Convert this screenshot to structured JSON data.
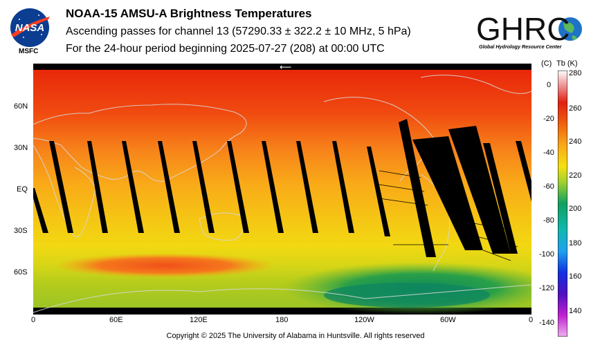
{
  "header": {
    "title": "NOAA-15 AMSU-A Brightness Temperatures",
    "line2": "Ascending passes for channel 13 (57290.33 ± 322.2 ± 10 MHz, 5 hPa)",
    "line3": "For the 24-hour period beginning 2025-07-27 (208) at 00:00 UTC"
  },
  "logos": {
    "nasa_text": "NASA",
    "msfc": "MSFC",
    "ghrc_text": "GHRC",
    "ghrc_subtitle": "Global Hydrology Resource Center"
  },
  "map": {
    "lat_labels": [
      "60N",
      "30N",
      "EQ",
      "30S",
      "60S"
    ],
    "lon_labels": [
      "0",
      "60E",
      "120E",
      "180",
      "120W",
      "60W",
      "0"
    ],
    "direction_marker": "⟵"
  },
  "colorbar": {
    "header_c": "(C)",
    "header_k": "Tb  (K)",
    "kelvin_ticks": [
      "280",
      "260",
      "240",
      "220",
      "200",
      "180",
      "160",
      "140"
    ],
    "celsius_ticks": [
      "0",
      "-20",
      "-40",
      "-60",
      "-80",
      "-100",
      "-120",
      "-140"
    ],
    "range_k": [
      133,
      280
    ]
  },
  "footer": {
    "copyright": "Copyright © 2025 The University of Alabama in Huntsville.  All rights reserved"
  }
}
